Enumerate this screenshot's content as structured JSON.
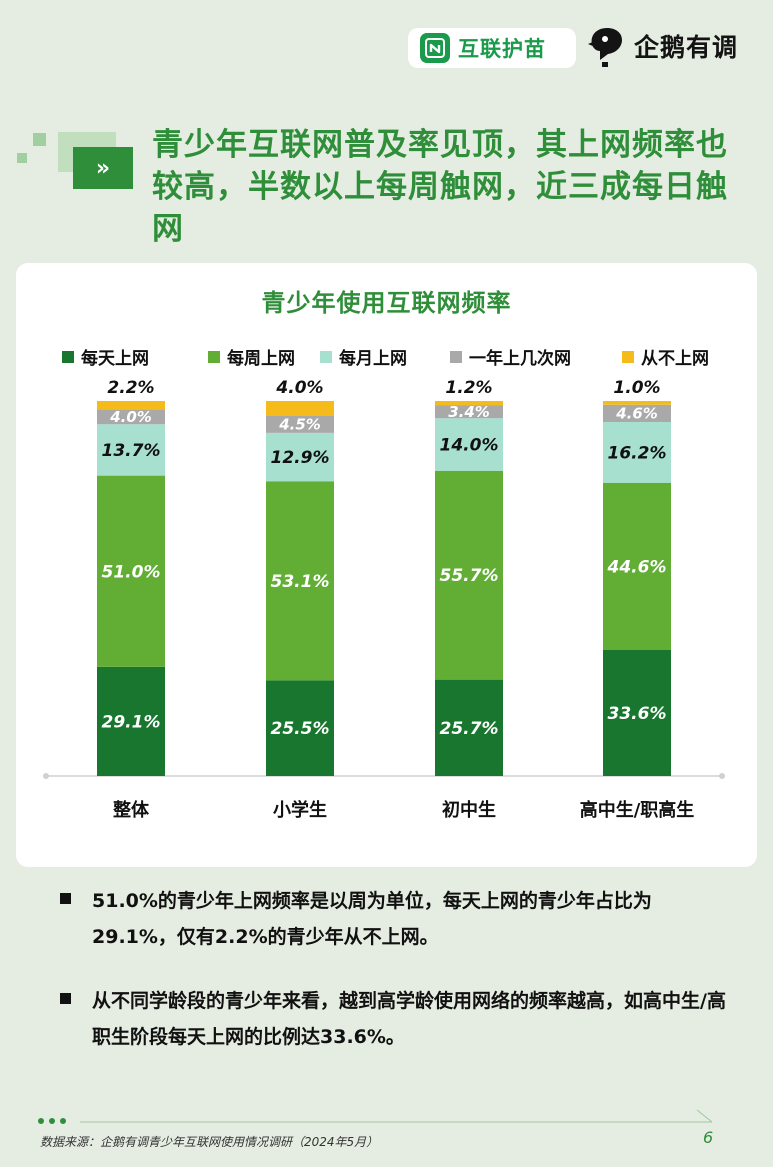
{
  "header": {
    "brand1": "互联护苗",
    "brand2": "企鹅有调"
  },
  "title": "青少年互联网普及率见顶，其上网频率也较高，半数以上每周触网，近三成每日触网",
  "title_button_glyph": "»",
  "colors": {
    "accent": "#2f8e39",
    "daily": "#18762f",
    "weekly": "#62ae35",
    "monthly": "#a8e0d0",
    "yearly": "#a9a9a9",
    "never": "#f4bb1a"
  },
  "chart_data": {
    "type": "bar",
    "stacked": true,
    "title": "青少年使用互联网频率",
    "categories": [
      "整体",
      "小学生",
      "初中生",
      "高中生/职高生"
    ],
    "series": [
      {
        "name": "每天上网",
        "values": [
          29.1,
          25.5,
          25.7,
          33.6
        ],
        "color": "#18762f",
        "label_color": "#ffffff"
      },
      {
        "name": "每周上网",
        "values": [
          51.0,
          53.1,
          55.7,
          44.6
        ],
        "color": "#62ae35",
        "label_color": "#ffffff"
      },
      {
        "name": "每月上网",
        "values": [
          13.7,
          12.9,
          14.0,
          16.2
        ],
        "color": "#a8e0d0",
        "label_color": "#111111"
      },
      {
        "name": "一年上几次网",
        "values": [
          4.0,
          4.5,
          3.4,
          4.6
        ],
        "color": "#a9a9a9",
        "label_color": "#ffffff"
      },
      {
        "name": "从不上网",
        "values": [
          2.2,
          4.0,
          1.2,
          1.0
        ],
        "color": "#f4bb1a",
        "label_color": "#111111"
      }
    ],
    "value_format": "{v}%",
    "ylim": [
      0,
      100
    ],
    "legend_position": "top",
    "grid": false
  },
  "notes": [
    "51.0%的青少年上网频率是以周为单位，每天上网的青少年占比为29.1%，仅有2.2%的青少年从不上网。",
    "从不同学龄段的青少年来看，越到高学龄使用网络的频率越高，如高中生/高职生阶段每天上网的比例达33.6%。"
  ],
  "footer": {
    "source": "数据来源：企鹅有调青少年互联网使用情况调研（2024年5月）",
    "page": "6"
  }
}
